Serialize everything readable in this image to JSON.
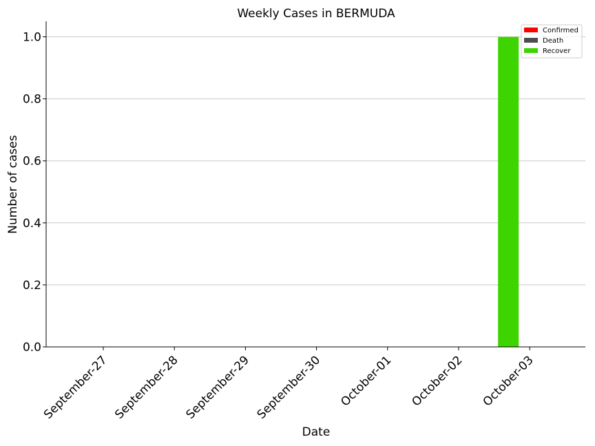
{
  "chart_data": {
    "type": "bar",
    "title": "Weekly Cases in BERMUDA",
    "xlabel": "Date",
    "ylabel": "Number of cases",
    "categories": [
      "September-27",
      "September-28",
      "September-29",
      "September-30",
      "October-01",
      "October-02",
      "October-03"
    ],
    "series": [
      {
        "name": "Confirmed",
        "color": "#ff0000",
        "values": [
          0,
          0,
          0,
          0,
          0,
          0,
          0
        ]
      },
      {
        "name": "Death",
        "color": "#4d4d4d",
        "values": [
          0,
          0,
          0,
          0,
          0,
          0,
          0
        ]
      },
      {
        "name": "Recover",
        "color": "#3dd400",
        "values": [
          0,
          0,
          0,
          0,
          0,
          0,
          1
        ]
      }
    ],
    "ylim": [
      0,
      1.05
    ],
    "yticks": [
      "0.0",
      "0.2",
      "0.4",
      "0.6",
      "0.8",
      "1.0"
    ],
    "grid": "horizontal",
    "legend_position": "top-right"
  }
}
